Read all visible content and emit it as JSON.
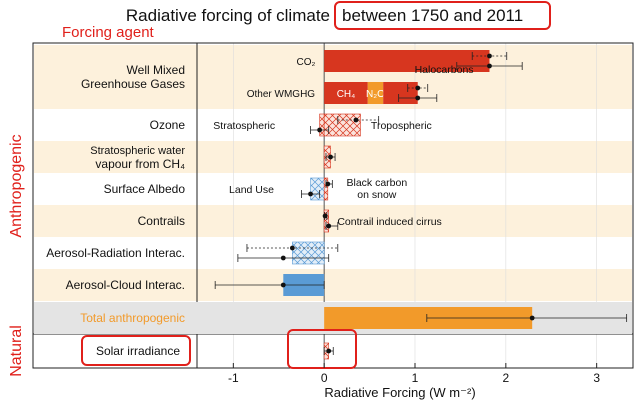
{
  "chart_data": {
    "type": "bar",
    "title_prefix": "Radiative forcing of climate",
    "title_highlight": "between 1750 and 2011",
    "column_header": "Forcing agent",
    "xlabel": "Radiative Forcing (W m⁻²)",
    "xlim": [
      -1.4,
      3.4
    ],
    "xticks": [
      -1,
      0,
      1,
      2,
      3
    ],
    "group_labels": {
      "anthropogenic": "Anthropogenic",
      "natural": "Natural"
    },
    "colors": {
      "red": "#d7361f",
      "orange": "#f29a2a",
      "blue": "#5a9bd5",
      "highlight": "#e0201b",
      "band": "#fdf1dc",
      "total_band": "#e4e4e4",
      "total_label": "#f29a2a"
    },
    "agents": [
      {
        "label": [
          "Well Mixed",
          "Greenhouse Gases"
        ],
        "rows": [
          {
            "bars": [
              {
                "from": 0,
                "to": 1.82,
                "color": "red",
                "label": "CO₂"
              }
            ],
            "estimates": [
              {
                "value": 1.82,
                "low": 1.63,
                "high": 2.01,
                "style": "dotted"
              },
              {
                "value": 1.82,
                "low": 1.46,
                "high": 2.18,
                "style": "solid"
              }
            ],
            "annotations": [
              {
                "text": "Halocarbons",
                "x": 1.32
              }
            ]
          },
          {
            "bars": [
              {
                "from": 0,
                "to": 0.48,
                "color": "red",
                "label": "CH₄"
              },
              {
                "from": 0.48,
                "to": 0.65,
                "color": "orange",
                "label": "N₂O"
              },
              {
                "from": 0.65,
                "to": 1.03,
                "color": "red",
                "label": ""
              }
            ],
            "estimates": [
              {
                "value": 1.03,
                "low": 0.92,
                "high": 1.14,
                "style": "dotted"
              },
              {
                "value": 1.03,
                "low": 0.82,
                "high": 1.24,
                "style": "solid"
              }
            ],
            "left_note": "Other WMGHG"
          }
        ]
      },
      {
        "label": [
          "Ozone"
        ],
        "rows": [
          {
            "bars": [
              {
                "from": -0.05,
                "to": 0,
                "color": "red",
                "pattern": "hatch"
              },
              {
                "from": 0,
                "to": 0.4,
                "color": "red",
                "pattern": "hatch"
              }
            ],
            "estimates": [
              {
                "value": 0.35,
                "low": 0.15,
                "high": 0.6,
                "style": "dotted"
              },
              {
                "value": -0.05,
                "low": -0.15,
                "high": 0.05,
                "style": "solid"
              }
            ],
            "annotations": [
              {
                "text": "Stratospheric",
                "x": -0.88
              },
              {
                "text": "Tropospheric",
                "x": 0.85
              }
            ]
          }
        ]
      },
      {
        "label": [
          "Stratospheric water",
          "vapour from CH₄"
        ],
        "rows": [
          {
            "bars": [
              {
                "from": 0,
                "to": 0.07,
                "color": "red",
                "pattern": "hatch"
              }
            ],
            "estimates": [
              {
                "value": 0.07,
                "low": 0.02,
                "high": 0.12,
                "style": "solid"
              }
            ]
          }
        ]
      },
      {
        "label": [
          "Surface Albedo"
        ],
        "rows": [
          {
            "bars": [
              {
                "from": -0.15,
                "to": 0,
                "color": "blue",
                "pattern": "hatch"
              },
              {
                "from": 0,
                "to": 0.04,
                "color": "red",
                "pattern": "hatch"
              }
            ],
            "estimates": [
              {
                "value": 0.04,
                "low": 0.02,
                "high": 0.09,
                "style": "solid"
              },
              {
                "value": -0.15,
                "low": -0.25,
                "high": -0.05,
                "style": "solid"
              }
            ],
            "annotations": [
              {
                "text": "Land Use",
                "x": -0.8
              },
              {
                "text": "Black carbon",
                "x": 0.58,
                "line2": "on snow"
              }
            ]
          }
        ]
      },
      {
        "label": [
          "Contrails"
        ],
        "rows": [
          {
            "bars": [
              {
                "from": 0,
                "to": 0.05,
                "color": "red",
                "pattern": "hatch"
              }
            ],
            "estimates": [
              {
                "value": 0.01,
                "low": 0.005,
                "high": 0.03,
                "style": "solid"
              },
              {
                "value": 0.05,
                "low": 0.02,
                "high": 0.15,
                "style": "solid"
              }
            ],
            "annotations": [
              {
                "text": "Contrail induced cirrus",
                "x": 0.72
              }
            ]
          }
        ]
      },
      {
        "label": [
          "Aerosol-Radiation Interac."
        ],
        "rows": [
          {
            "bars": [
              {
                "from": -0.35,
                "to": 0,
                "color": "blue",
                "pattern": "hatch"
              }
            ],
            "estimates": [
              {
                "value": -0.35,
                "low": -0.85,
                "high": 0.15,
                "style": "dotted"
              },
              {
                "value": -0.45,
                "low": -0.95,
                "high": 0.05,
                "style": "solid"
              }
            ]
          }
        ]
      },
      {
        "label": [
          "Aerosol-Cloud Interac."
        ],
        "rows": [
          {
            "bars": [
              {
                "from": -0.45,
                "to": 0,
                "color": "blue"
              }
            ],
            "estimates": [
              {
                "value": -0.45,
                "low": -1.2,
                "high": 0.0,
                "style": "solid"
              }
            ]
          }
        ]
      }
    ],
    "total": {
      "label": "Total anthropogenic",
      "value": 2.29,
      "low": 1.13,
      "high": 3.33
    },
    "natural": {
      "label": "Solar irradiance",
      "value": 0.05,
      "low": 0.0,
      "high": 0.1
    }
  }
}
